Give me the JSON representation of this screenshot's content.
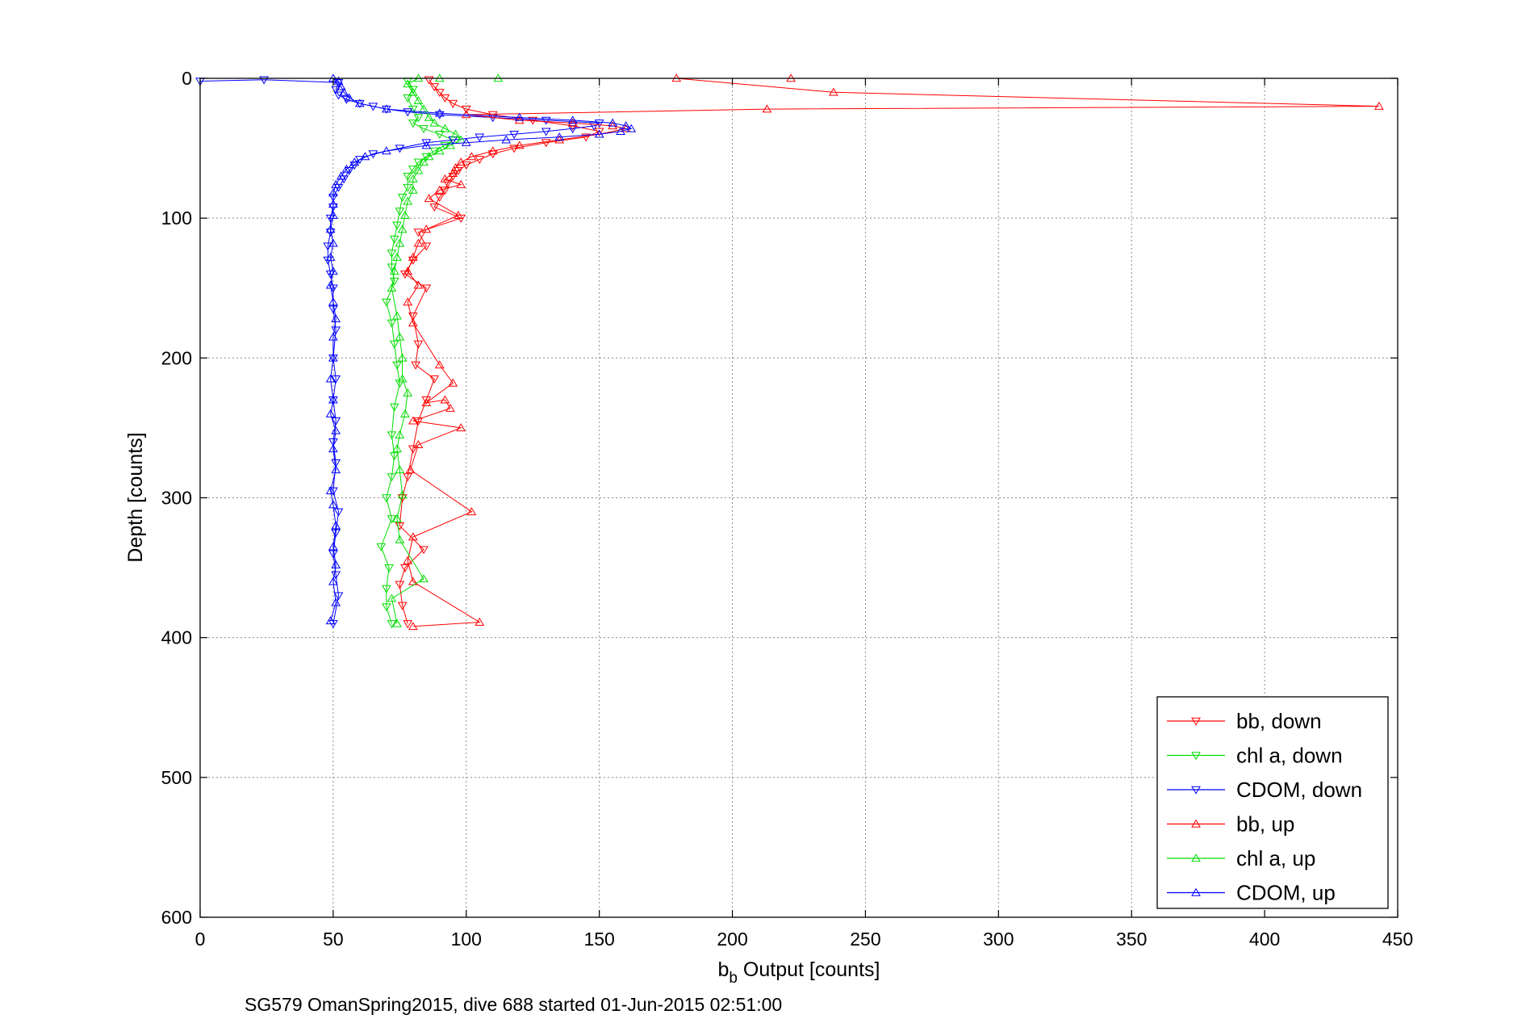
{
  "chart_data": {
    "type": "scatter",
    "xlabel_main": "b",
    "xlabel_sub": "b",
    "xlabel_rest": " Output [counts]",
    "ylabel": "Depth [counts]",
    "caption": "SG579 OmanSpring2015, dive 688 started 01-Jun-2015 02:51:00",
    "xlim": [
      0,
      450
    ],
    "ylim": [
      0,
      600
    ],
    "y_reversed": true,
    "grid": true,
    "legend_position": "bottom-right",
    "xticks": [
      "0",
      "50",
      "100",
      "150",
      "200",
      "250",
      "300",
      "350",
      "400",
      "450"
    ],
    "yticks": [
      "0",
      "100",
      "200",
      "300",
      "400",
      "500",
      "600"
    ],
    "series": [
      {
        "name": "bb, down",
        "color": "#ff0000",
        "marker": "triangle-down",
        "points": [
          [
            86,
            1
          ],
          [
            88,
            6
          ],
          [
            90,
            10
          ],
          [
            92,
            14
          ],
          [
            95,
            18
          ],
          [
            100,
            22
          ],
          [
            110,
            26
          ],
          [
            125,
            30
          ],
          [
            140,
            34
          ],
          [
            150,
            38
          ],
          [
            145,
            42
          ],
          [
            130,
            46
          ],
          [
            118,
            50
          ],
          [
            110,
            54
          ],
          [
            105,
            58
          ],
          [
            100,
            62
          ],
          [
            97,
            66
          ],
          [
            95,
            70
          ],
          [
            93,
            75
          ],
          [
            92,
            80
          ],
          [
            90,
            85
          ],
          [
            88,
            92
          ],
          [
            98,
            100
          ],
          [
            82,
            110
          ],
          [
            85,
            120
          ],
          [
            80,
            130
          ],
          [
            77,
            140
          ],
          [
            85,
            150
          ],
          [
            80,
            170
          ],
          [
            82,
            190
          ],
          [
            81,
            205
          ],
          [
            88,
            215
          ],
          [
            85,
            230
          ],
          [
            82,
            245
          ],
          [
            80,
            265
          ],
          [
            78,
            285
          ],
          [
            76,
            300
          ],
          [
            75,
            320
          ],
          [
            84,
            337
          ],
          [
            77,
            350
          ],
          [
            75,
            362
          ],
          [
            76,
            377
          ],
          [
            78,
            390
          ]
        ]
      },
      {
        "name": "chl a, down",
        "color": "#00dd00",
        "marker": "triangle-down",
        "points": [
          [
            78,
            2
          ],
          [
            80,
            8
          ],
          [
            78,
            14
          ],
          [
            80,
            22
          ],
          [
            82,
            28
          ],
          [
            80,
            32
          ],
          [
            84,
            36
          ],
          [
            90,
            40
          ],
          [
            95,
            44
          ],
          [
            92,
            48
          ],
          [
            88,
            52
          ],
          [
            85,
            56
          ],
          [
            82,
            60
          ],
          [
            80,
            65
          ],
          [
            78,
            70
          ],
          [
            78,
            78
          ],
          [
            76,
            85
          ],
          [
            75,
            95
          ],
          [
            74,
            105
          ],
          [
            73,
            115
          ],
          [
            72,
            125
          ],
          [
            72,
            135
          ],
          [
            73,
            145
          ],
          [
            70,
            160
          ],
          [
            72,
            175
          ],
          [
            73,
            190
          ],
          [
            74,
            205
          ],
          [
            75,
            218
          ],
          [
            73,
            235
          ],
          [
            72,
            255
          ],
          [
            73,
            270
          ],
          [
            72,
            285
          ],
          [
            70,
            300
          ],
          [
            72,
            315
          ],
          [
            68,
            335
          ],
          [
            71,
            350
          ],
          [
            70,
            365
          ],
          [
            70,
            378
          ],
          [
            72,
            390
          ]
        ]
      },
      {
        "name": "CDOM, down",
        "color": "#0000ff",
        "marker": "triangle-down",
        "points": [
          [
            0,
            2
          ],
          [
            24,
            1
          ],
          [
            52,
            3
          ],
          [
            51,
            8
          ],
          [
            52,
            12
          ],
          [
            55,
            15
          ],
          [
            60,
            18
          ],
          [
            65,
            20
          ],
          [
            70,
            22
          ],
          [
            78,
            24
          ],
          [
            90,
            26
          ],
          [
            110,
            28
          ],
          [
            130,
            30
          ],
          [
            150,
            32
          ],
          [
            148,
            34
          ],
          [
            140,
            36
          ],
          [
            130,
            38
          ],
          [
            118,
            40
          ],
          [
            105,
            42
          ],
          [
            95,
            44
          ],
          [
            85,
            46
          ],
          [
            75,
            50
          ],
          [
            65,
            54
          ],
          [
            60,
            58
          ],
          [
            58,
            62
          ],
          [
            56,
            66
          ],
          [
            54,
            72
          ],
          [
            52,
            78
          ],
          [
            50,
            85
          ],
          [
            50,
            92
          ],
          [
            49,
            100
          ],
          [
            49,
            110
          ],
          [
            48,
            120
          ],
          [
            48,
            130
          ],
          [
            49,
            140
          ],
          [
            50,
            150
          ],
          [
            50,
            165
          ],
          [
            51,
            180
          ],
          [
            50,
            200
          ],
          [
            51,
            215
          ],
          [
            50,
            230
          ],
          [
            51,
            245
          ],
          [
            50,
            260
          ],
          [
            51,
            275
          ],
          [
            50,
            295
          ],
          [
            52,
            310
          ],
          [
            51,
            325
          ],
          [
            50,
            340
          ],
          [
            51,
            355
          ],
          [
            52,
            370
          ],
          [
            50,
            390
          ]
        ]
      },
      {
        "name": "bb, up",
        "color": "#ff0000",
        "marker": "triangle-up",
        "points": [
          [
            222,
            0
          ],
          [
            179,
            0
          ],
          [
            238,
            10
          ],
          [
            443,
            20
          ],
          [
            213,
            22
          ],
          [
            100,
            26
          ],
          [
            120,
            30
          ],
          [
            140,
            32
          ],
          [
            155,
            34
          ],
          [
            160,
            36
          ],
          [
            150,
            40
          ],
          [
            135,
            44
          ],
          [
            120,
            48
          ],
          [
            110,
            52
          ],
          [
            102,
            56
          ],
          [
            98,
            60
          ],
          [
            96,
            64
          ],
          [
            95,
            68
          ],
          [
            92,
            72
          ],
          [
            98,
            76
          ],
          [
            90,
            80
          ],
          [
            86,
            86
          ],
          [
            97,
            98
          ],
          [
            85,
            108
          ],
          [
            82,
            118
          ],
          [
            80,
            128
          ],
          [
            78,
            138
          ],
          [
            82,
            148
          ],
          [
            78,
            160
          ],
          [
            80,
            175
          ],
          [
            90,
            205
          ],
          [
            95,
            218
          ],
          [
            85,
            232
          ],
          [
            92,
            230
          ],
          [
            94,
            236
          ],
          [
            80,
            245
          ],
          [
            98,
            250
          ],
          [
            82,
            262
          ],
          [
            79,
            280
          ],
          [
            102,
            310
          ],
          [
            80,
            328
          ],
          [
            78,
            345
          ],
          [
            80,
            360
          ],
          [
            105,
            389
          ],
          [
            80,
            392
          ]
        ]
      },
      {
        "name": "chl a, up",
        "color": "#00dd00",
        "marker": "triangle-up",
        "points": [
          [
            112,
            0
          ],
          [
            90,
            0
          ],
          [
            82,
            0
          ],
          [
            78,
            4
          ],
          [
            80,
            10
          ],
          [
            82,
            16
          ],
          [
            84,
            22
          ],
          [
            86,
            28
          ],
          [
            88,
            32
          ],
          [
            92,
            36
          ],
          [
            96,
            40
          ],
          [
            98,
            44
          ],
          [
            94,
            48
          ],
          [
            90,
            52
          ],
          [
            86,
            56
          ],
          [
            84,
            60
          ],
          [
            82,
            66
          ],
          [
            80,
            72
          ],
          [
            80,
            80
          ],
          [
            78,
            88
          ],
          [
            77,
            98
          ],
          [
            76,
            108
          ],
          [
            75,
            118
          ],
          [
            74,
            128
          ],
          [
            73,
            138
          ],
          [
            72,
            150
          ],
          [
            74,
            170
          ],
          [
            75,
            185
          ],
          [
            76,
            200
          ],
          [
            76,
            215
          ],
          [
            78,
            225
          ],
          [
            77,
            240
          ],
          [
            75,
            255
          ],
          [
            74,
            265
          ],
          [
            75,
            280
          ],
          [
            76,
            298
          ],
          [
            74,
            315
          ],
          [
            75,
            330
          ],
          [
            84,
            358
          ],
          [
            72,
            372
          ],
          [
            74,
            390
          ]
        ]
      },
      {
        "name": "CDOM, up",
        "color": "#0000ff",
        "marker": "triangle-up",
        "points": [
          [
            50,
            0
          ],
          [
            52,
            2
          ],
          [
            53,
            6
          ],
          [
            54,
            10
          ],
          [
            56,
            14
          ],
          [
            60,
            18
          ],
          [
            70,
            22
          ],
          [
            90,
            25
          ],
          [
            120,
            28
          ],
          [
            140,
            30
          ],
          [
            155,
            32
          ],
          [
            160,
            34
          ],
          [
            162,
            36
          ],
          [
            158,
            38
          ],
          [
            150,
            40
          ],
          [
            135,
            42
          ],
          [
            115,
            44
          ],
          [
            100,
            46
          ],
          [
            85,
            48
          ],
          [
            70,
            52
          ],
          [
            62,
            56
          ],
          [
            58,
            60
          ],
          [
            55,
            65
          ],
          [
            53,
            70
          ],
          [
            51,
            76
          ],
          [
            50,
            82
          ],
          [
            50,
            90
          ],
          [
            50,
            98
          ],
          [
            49,
            108
          ],
          [
            50,
            118
          ],
          [
            49,
            128
          ],
          [
            50,
            138
          ],
          [
            49,
            148
          ],
          [
            50,
            160
          ],
          [
            51,
            172
          ],
          [
            50,
            185
          ],
          [
            50,
            200
          ],
          [
            49,
            215
          ],
          [
            50,
            230
          ],
          [
            49,
            240
          ],
          [
            51,
            252
          ],
          [
            50,
            265
          ],
          [
            51,
            280
          ],
          [
            49,
            295
          ],
          [
            50,
            305
          ],
          [
            51,
            320
          ],
          [
            50,
            335
          ],
          [
            51,
            348
          ],
          [
            50,
            360
          ],
          [
            51,
            375
          ],
          [
            49,
            388
          ]
        ]
      }
    ]
  }
}
